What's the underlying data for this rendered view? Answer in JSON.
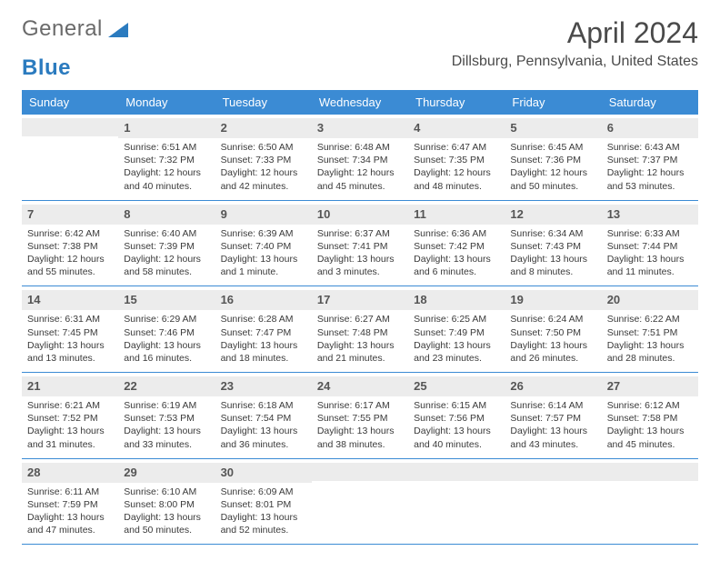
{
  "logo": {
    "part1": "General",
    "part2": "Blue"
  },
  "title": "April 2024",
  "location": "Dillsburg, Pennsylvania, United States",
  "weekdays": [
    "Sunday",
    "Monday",
    "Tuesday",
    "Wednesday",
    "Thursday",
    "Friday",
    "Saturday"
  ],
  "header_bg": "#3b8bd4",
  "daynum_bg": "#ececec",
  "week_border": "#3b8bd4",
  "weeks": [
    [
      {
        "empty": true
      },
      {
        "day": "1",
        "sunrise": "Sunrise: 6:51 AM",
        "sunset": "Sunset: 7:32 PM",
        "d1": "Daylight: 12 hours",
        "d2": "and 40 minutes."
      },
      {
        "day": "2",
        "sunrise": "Sunrise: 6:50 AM",
        "sunset": "Sunset: 7:33 PM",
        "d1": "Daylight: 12 hours",
        "d2": "and 42 minutes."
      },
      {
        "day": "3",
        "sunrise": "Sunrise: 6:48 AM",
        "sunset": "Sunset: 7:34 PM",
        "d1": "Daylight: 12 hours",
        "d2": "and 45 minutes."
      },
      {
        "day": "4",
        "sunrise": "Sunrise: 6:47 AM",
        "sunset": "Sunset: 7:35 PM",
        "d1": "Daylight: 12 hours",
        "d2": "and 48 minutes."
      },
      {
        "day": "5",
        "sunrise": "Sunrise: 6:45 AM",
        "sunset": "Sunset: 7:36 PM",
        "d1": "Daylight: 12 hours",
        "d2": "and 50 minutes."
      },
      {
        "day": "6",
        "sunrise": "Sunrise: 6:43 AM",
        "sunset": "Sunset: 7:37 PM",
        "d1": "Daylight: 12 hours",
        "d2": "and 53 minutes."
      }
    ],
    [
      {
        "day": "7",
        "sunrise": "Sunrise: 6:42 AM",
        "sunset": "Sunset: 7:38 PM",
        "d1": "Daylight: 12 hours",
        "d2": "and 55 minutes."
      },
      {
        "day": "8",
        "sunrise": "Sunrise: 6:40 AM",
        "sunset": "Sunset: 7:39 PM",
        "d1": "Daylight: 12 hours",
        "d2": "and 58 minutes."
      },
      {
        "day": "9",
        "sunrise": "Sunrise: 6:39 AM",
        "sunset": "Sunset: 7:40 PM",
        "d1": "Daylight: 13 hours",
        "d2": "and 1 minute."
      },
      {
        "day": "10",
        "sunrise": "Sunrise: 6:37 AM",
        "sunset": "Sunset: 7:41 PM",
        "d1": "Daylight: 13 hours",
        "d2": "and 3 minutes."
      },
      {
        "day": "11",
        "sunrise": "Sunrise: 6:36 AM",
        "sunset": "Sunset: 7:42 PM",
        "d1": "Daylight: 13 hours",
        "d2": "and 6 minutes."
      },
      {
        "day": "12",
        "sunrise": "Sunrise: 6:34 AM",
        "sunset": "Sunset: 7:43 PM",
        "d1": "Daylight: 13 hours",
        "d2": "and 8 minutes."
      },
      {
        "day": "13",
        "sunrise": "Sunrise: 6:33 AM",
        "sunset": "Sunset: 7:44 PM",
        "d1": "Daylight: 13 hours",
        "d2": "and 11 minutes."
      }
    ],
    [
      {
        "day": "14",
        "sunrise": "Sunrise: 6:31 AM",
        "sunset": "Sunset: 7:45 PM",
        "d1": "Daylight: 13 hours",
        "d2": "and 13 minutes."
      },
      {
        "day": "15",
        "sunrise": "Sunrise: 6:29 AM",
        "sunset": "Sunset: 7:46 PM",
        "d1": "Daylight: 13 hours",
        "d2": "and 16 minutes."
      },
      {
        "day": "16",
        "sunrise": "Sunrise: 6:28 AM",
        "sunset": "Sunset: 7:47 PM",
        "d1": "Daylight: 13 hours",
        "d2": "and 18 minutes."
      },
      {
        "day": "17",
        "sunrise": "Sunrise: 6:27 AM",
        "sunset": "Sunset: 7:48 PM",
        "d1": "Daylight: 13 hours",
        "d2": "and 21 minutes."
      },
      {
        "day": "18",
        "sunrise": "Sunrise: 6:25 AM",
        "sunset": "Sunset: 7:49 PM",
        "d1": "Daylight: 13 hours",
        "d2": "and 23 minutes."
      },
      {
        "day": "19",
        "sunrise": "Sunrise: 6:24 AM",
        "sunset": "Sunset: 7:50 PM",
        "d1": "Daylight: 13 hours",
        "d2": "and 26 minutes."
      },
      {
        "day": "20",
        "sunrise": "Sunrise: 6:22 AM",
        "sunset": "Sunset: 7:51 PM",
        "d1": "Daylight: 13 hours",
        "d2": "and 28 minutes."
      }
    ],
    [
      {
        "day": "21",
        "sunrise": "Sunrise: 6:21 AM",
        "sunset": "Sunset: 7:52 PM",
        "d1": "Daylight: 13 hours",
        "d2": "and 31 minutes."
      },
      {
        "day": "22",
        "sunrise": "Sunrise: 6:19 AM",
        "sunset": "Sunset: 7:53 PM",
        "d1": "Daylight: 13 hours",
        "d2": "and 33 minutes."
      },
      {
        "day": "23",
        "sunrise": "Sunrise: 6:18 AM",
        "sunset": "Sunset: 7:54 PM",
        "d1": "Daylight: 13 hours",
        "d2": "and 36 minutes."
      },
      {
        "day": "24",
        "sunrise": "Sunrise: 6:17 AM",
        "sunset": "Sunset: 7:55 PM",
        "d1": "Daylight: 13 hours",
        "d2": "and 38 minutes."
      },
      {
        "day": "25",
        "sunrise": "Sunrise: 6:15 AM",
        "sunset": "Sunset: 7:56 PM",
        "d1": "Daylight: 13 hours",
        "d2": "and 40 minutes."
      },
      {
        "day": "26",
        "sunrise": "Sunrise: 6:14 AM",
        "sunset": "Sunset: 7:57 PM",
        "d1": "Daylight: 13 hours",
        "d2": "and 43 minutes."
      },
      {
        "day": "27",
        "sunrise": "Sunrise: 6:12 AM",
        "sunset": "Sunset: 7:58 PM",
        "d1": "Daylight: 13 hours",
        "d2": "and 45 minutes."
      }
    ],
    [
      {
        "day": "28",
        "sunrise": "Sunrise: 6:11 AM",
        "sunset": "Sunset: 7:59 PM",
        "d1": "Daylight: 13 hours",
        "d2": "and 47 minutes."
      },
      {
        "day": "29",
        "sunrise": "Sunrise: 6:10 AM",
        "sunset": "Sunset: 8:00 PM",
        "d1": "Daylight: 13 hours",
        "d2": "and 50 minutes."
      },
      {
        "day": "30",
        "sunrise": "Sunrise: 6:09 AM",
        "sunset": "Sunset: 8:01 PM",
        "d1": "Daylight: 13 hours",
        "d2": "and 52 minutes."
      },
      {
        "empty": true
      },
      {
        "empty": true
      },
      {
        "empty": true
      },
      {
        "empty": true
      }
    ]
  ]
}
